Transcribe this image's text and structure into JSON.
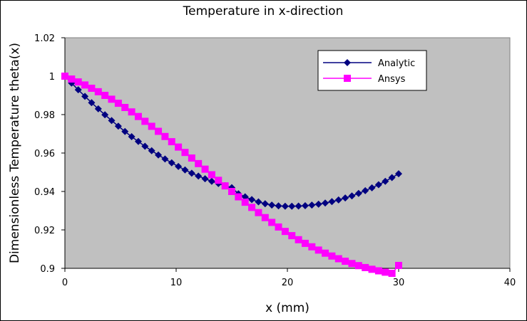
{
  "chart_data": {
    "type": "line",
    "title": "Temperature in x-direction",
    "xlabel": "x (mm)",
    "ylabel": "Dimensionless Temperature theta(x)",
    "xlim": [
      0,
      40
    ],
    "ylim": [
      0.9,
      1.02
    ],
    "xticks": [
      "0",
      "10",
      "20",
      "30",
      "40"
    ],
    "yticks": [
      "0.9",
      "0.92",
      "0.94",
      "0.96",
      "0.98",
      "1",
      "1.02"
    ],
    "grid": false,
    "legend": "top-right",
    "plot_background": "#c0c0c0",
    "series": [
      {
        "name": "Analytic",
        "color": "#000080",
        "marker": "diamond",
        "x": [
          0,
          0.6,
          1.2,
          1.8,
          2.4,
          3.0,
          3.6,
          4.2,
          4.8,
          5.4,
          6.0,
          6.6,
          7.2,
          7.8,
          8.4,
          9.0,
          9.6,
          10.2,
          10.8,
          11.4,
          12.0,
          12.6,
          13.2,
          13.8,
          14.4,
          15.0,
          15.6,
          16.2,
          16.8,
          17.4,
          18.0,
          18.6,
          19.2,
          19.8,
          20.4,
          21.0,
          21.6,
          22.2,
          22.8,
          23.4,
          24.0,
          24.6,
          25.2,
          25.8,
          26.4,
          27.0,
          27.6,
          28.2,
          28.8,
          29.4,
          30.0
        ],
        "y": [
          1.0,
          0.9964,
          0.9929,
          0.9895,
          0.9862,
          0.983,
          0.9799,
          0.9769,
          0.974,
          0.9712,
          0.9685,
          0.966,
          0.9635,
          0.9612,
          0.959,
          0.9569,
          0.9549,
          0.953,
          0.9512,
          0.9495,
          0.948,
          0.9466,
          0.9453,
          0.9441,
          0.943,
          0.942,
          0.9388,
          0.9372,
          0.9358,
          0.9346,
          0.9336,
          0.9329,
          0.9325,
          0.9323,
          0.9323,
          0.9324,
          0.9326,
          0.9329,
          0.9334,
          0.934,
          0.9347,
          0.9356,
          0.9366,
          0.9377,
          0.939,
          0.9404,
          0.9419,
          0.9435,
          0.9453,
          0.9472,
          0.9492
        ]
      },
      {
        "name": "Ansys",
        "color": "#ff00ff",
        "marker": "square",
        "x": [
          0,
          0.6,
          1.2,
          1.8,
          2.4,
          3.0,
          3.6,
          4.2,
          4.8,
          5.4,
          6.0,
          6.6,
          7.2,
          7.8,
          8.4,
          9.0,
          9.6,
          10.2,
          10.8,
          11.4,
          12.0,
          12.6,
          13.2,
          13.8,
          14.4,
          15.0,
          15.6,
          16.2,
          16.8,
          17.4,
          18.0,
          18.6,
          19.2,
          19.8,
          20.4,
          21.0,
          21.6,
          22.2,
          22.8,
          23.4,
          24.0,
          24.6,
          25.2,
          25.8,
          26.4,
          27.0,
          27.6,
          28.2,
          28.8,
          29.4,
          30.0
        ],
        "y": [
          1.0,
          0.9985,
          0.997,
          0.9954,
          0.9937,
          0.9919,
          0.99,
          0.988,
          0.9859,
          0.9837,
          0.9814,
          0.979,
          0.9765,
          0.9739,
          0.9713,
          0.9686,
          0.9659,
          0.9631,
          0.9603,
          0.9574,
          0.9545,
          0.9516,
          0.9487,
          0.9458,
          0.9429,
          0.94,
          0.9372,
          0.9344,
          0.9317,
          0.929,
          0.9264,
          0.9239,
          0.9215,
          0.9192,
          0.917,
          0.9149,
          0.913,
          0.9112,
          0.9095,
          0.9079,
          0.9064,
          0.905,
          0.9037,
          0.9025,
          0.9014,
          0.9004,
          0.8995,
          0.8987,
          0.898,
          0.8974,
          0.9015
        ]
      }
    ]
  }
}
